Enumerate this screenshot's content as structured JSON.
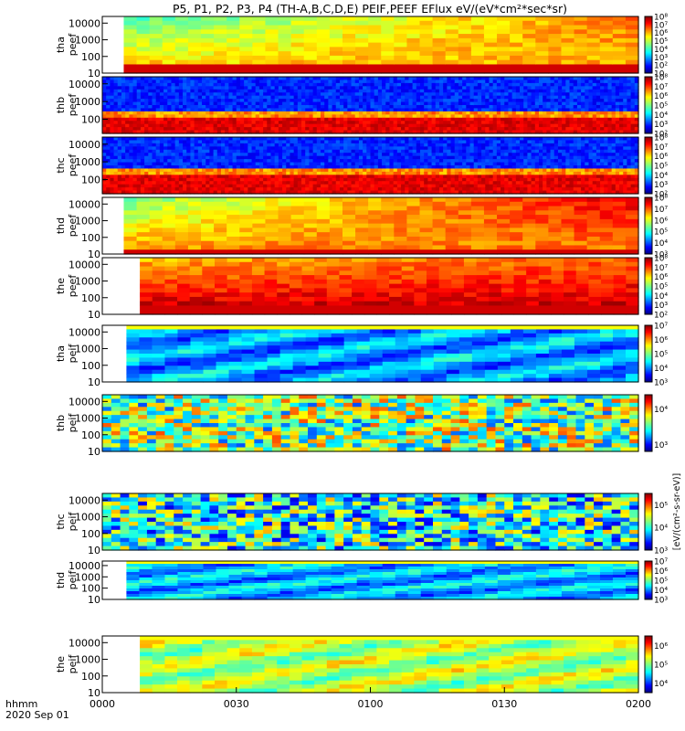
{
  "chart_data": {
    "type": "heatmap",
    "title": "P5, P1, P2, P3, P4 (TH-A,B,C,D,E) PEIF,PEEF EFlux eV/(eV*cm²*sec*sr)",
    "x_label_row1": "hhmm",
    "x_label_row2": "2020 Sep 01",
    "x_ticks": [
      "0000",
      "0030",
      "0100",
      "0130",
      "0200"
    ],
    "x_range_minutes": [
      0,
      120
    ],
    "colorbar_unit_label": "[eV/(cm²-s-sr-eV)]",
    "panels": [
      {
        "probe": "tha",
        "product": "peef",
        "y_ticks": [
          "10",
          "100",
          "1000",
          "10000"
        ],
        "y_log_range": [
          1,
          4.4
        ],
        "cb_ticks": [
          "10",
          "10²",
          "10³",
          "10⁴",
          "10⁵",
          "10⁶",
          "10⁷",
          "10⁸"
        ],
        "cb_exp": [
          1,
          8
        ],
        "level": 0.45,
        "rows": 13,
        "cols": 40,
        "data_start": 0.04,
        "style": "smooth",
        "low_band": 0.1,
        "trend": 0.35
      },
      {
        "probe": "thb",
        "product": "peef",
        "y_ticks": [
          "100",
          "1000",
          "10000"
        ],
        "y_log_range": [
          1.2,
          4.4
        ],
        "cb_ticks": [
          "10²",
          "10³",
          "10⁴",
          "10⁵",
          "10⁶",
          "10⁷",
          "10⁸"
        ],
        "cb_exp": [
          2,
          8
        ],
        "level": 0.1,
        "rows": 18,
        "cols": 140,
        "data_start": 0,
        "style": "noisy",
        "low_band": 0.25,
        "trend": 0
      },
      {
        "probe": "thc",
        "product": "peef",
        "y_ticks": [
          "100",
          "1000",
          "10000"
        ],
        "y_log_range": [
          1.2,
          4.4
        ],
        "cb_ticks": [
          "10²",
          "10³",
          "10⁴",
          "10⁵",
          "10⁶",
          "10⁷",
          "10⁸"
        ],
        "cb_exp": [
          2,
          8
        ],
        "level": 0.1,
        "rows": 18,
        "cols": 140,
        "data_start": 0,
        "style": "noisy",
        "low_band": 0.3,
        "trend": 0
      },
      {
        "probe": "thd",
        "product": "peef",
        "y_ticks": [
          "10",
          "100",
          "1000",
          "10000"
        ],
        "y_log_range": [
          1,
          4.4
        ],
        "cb_ticks": [
          "10³",
          "10⁴",
          "10⁵",
          "10⁶",
          "10⁷",
          "10⁸"
        ],
        "cb_exp": [
          3,
          8
        ],
        "level": 0.5,
        "rows": 13,
        "cols": 40,
        "data_start": 0.04,
        "style": "smooth",
        "low_band": 0.08,
        "trend": 0.45
      },
      {
        "probe": "the",
        "product": "peef",
        "y_ticks": [
          "10",
          "100",
          "1000",
          "10000"
        ],
        "y_log_range": [
          1,
          4.4
        ],
        "cb_ticks": [
          "10²",
          "10³",
          "10⁴",
          "10⁵",
          "10⁶",
          "10⁷",
          "10⁸"
        ],
        "cb_exp": [
          2,
          8
        ],
        "level": 0.7,
        "rows": 13,
        "cols": 40,
        "data_start": 0.07,
        "style": "smooth",
        "low_band": 0.15,
        "trend": 0.1
      },
      {
        "probe": "tha",
        "product": "peif",
        "y_ticks": [
          "10",
          "100",
          "1000",
          "10000"
        ],
        "y_log_range": [
          1,
          4.4
        ],
        "cb_ticks": [
          "10³",
          "10⁴",
          "10⁵",
          "10⁶",
          "10⁷"
        ],
        "cb_exp": [
          3,
          7
        ],
        "level": 0.28,
        "rows": 14,
        "cols": 40,
        "data_start": 0.045,
        "style": "ion",
        "low_band": 0,
        "trend": 0
      },
      {
        "probe": "thb",
        "product": "peif",
        "y_ticks": [
          "10",
          "100",
          "1000",
          "10000"
        ],
        "y_log_range": [
          1,
          4.4
        ],
        "cb_ticks": [
          "10³",
          "10⁴"
        ],
        "cb_exp": [
          2.8,
          4.4
        ],
        "level": 0.5,
        "rows": 14,
        "cols": 60,
        "data_start": 0,
        "style": "speckle",
        "low_band": 0,
        "trend": 0
      },
      {
        "probe": "thc",
        "product": "peif",
        "y_ticks": [
          "10",
          "100",
          "1000",
          "10000"
        ],
        "y_log_range": [
          1,
          4.4
        ],
        "cb_ticks": [
          "10³",
          "10⁴",
          "10⁵"
        ],
        "cb_exp": [
          3,
          5.5
        ],
        "level": 0.4,
        "rows": 14,
        "cols": 60,
        "data_start": 0,
        "style": "speckle",
        "low_band": 0,
        "trend": 0
      },
      {
        "probe": "thd",
        "product": "peif",
        "y_ticks": [
          "10",
          "100",
          "1000",
          "10000"
        ],
        "y_log_range": [
          1,
          4.4
        ],
        "cb_ticks": [
          "10³",
          "10⁴",
          "10⁵",
          "10⁶",
          "10⁷"
        ],
        "cb_exp": [
          3,
          7
        ],
        "level": 0.3,
        "rows": 14,
        "cols": 40,
        "data_start": 0.045,
        "style": "ion",
        "low_band": 0,
        "trend": 0
      },
      {
        "probe": "the",
        "product": "peif",
        "y_ticks": [
          "10",
          "100",
          "1000",
          "10000"
        ],
        "y_log_range": [
          1,
          4.4
        ],
        "cb_ticks": [
          "10⁴",
          "10⁵",
          "10⁶"
        ],
        "cb_exp": [
          3.5,
          6.5
        ],
        "level": 0.55,
        "rows": 14,
        "cols": 40,
        "data_start": 0.07,
        "style": "ion",
        "low_band": 0,
        "trend": 0
      }
    ]
  }
}
